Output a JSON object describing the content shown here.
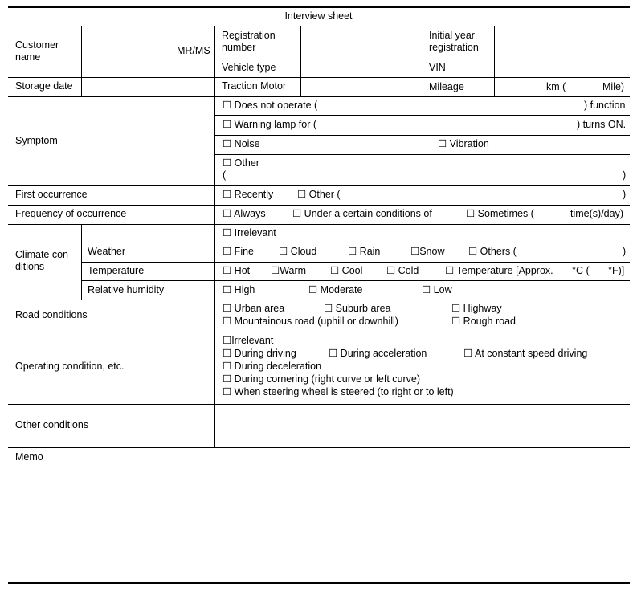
{
  "title": "Interview sheet",
  "customer": {
    "label": "Customer name",
    "suffix": "MR/MS",
    "reg_label": "Registration number",
    "initial_label": "Initial year registration",
    "vehicle_label": "Vehicle type",
    "vin_label": "VIN"
  },
  "storage": {
    "label": "Storage date",
    "traction_label": "Traction Motor",
    "mileage_label": "Mileage",
    "km": "km (",
    "mile": "Mile)"
  },
  "symptom": {
    "label": "Symptom",
    "does_not_operate": "☐ Does not operate (",
    "function": ") function",
    "warning": "☐ Warning lamp for (",
    "turns_on": ") turns ON.",
    "noise": "☐ Noise",
    "vibration": "☐ Vibration",
    "other": "☐ Other",
    "open": "(",
    "close": ")"
  },
  "first": {
    "label": "First occurrence",
    "recently": "☐ Recently",
    "other": "☐ Other (",
    "close": ")"
  },
  "frequency": {
    "label": "Frequency of occurrence",
    "always": "☐ Always",
    "under": "☐  Under a certain conditions of",
    "sometimes": "☐ Sometimes (",
    "unit": "time(s)/day)"
  },
  "climate": {
    "label": "Climate con-\nditions",
    "irrelevant": "☐ Irrelevant",
    "weather": {
      "label": "Weather",
      "fine": "☐ Fine",
      "cloud": "☐ Cloud",
      "rain": "☐ Rain",
      "snow": "☐Snow",
      "others": "☐ Others (",
      "close": ")"
    },
    "temperature": {
      "label": "Temperature",
      "hot": "☐ Hot",
      "warm": "☐Warm",
      "cool": "☐ Cool",
      "cold": "☐ Cold",
      "approx": "☐ Temperature [Approx.",
      "c": "°C (",
      "f": "°F)]"
    },
    "humidity": {
      "label": "Relative humidity",
      "high": "☐ High",
      "moderate": "☐ Moderate",
      "low": "☐ Low"
    }
  },
  "road": {
    "label": "Road conditions",
    "urban": "☐ Urban area",
    "suburb": "☐ Suburb area",
    "highway": "☐ Highway",
    "mountain": "☐ Mountainous road (uphill or downhill)",
    "rough": "☐ Rough road"
  },
  "operating": {
    "label": "Operating condition, etc.",
    "irrelevant": "☐Irrelevant",
    "driving": "☐ During driving",
    "accel": "☐ During acceleration",
    "constant": "☐ At constant speed driving",
    "decel": "☐ During deceleration",
    "cornering": "☐ During cornering (right curve or left curve)",
    "steering": "☐ When steering wheel is steered (to right or to left)"
  },
  "other_conditions": {
    "label": "Other conditions"
  },
  "memo": {
    "label": "Memo"
  }
}
